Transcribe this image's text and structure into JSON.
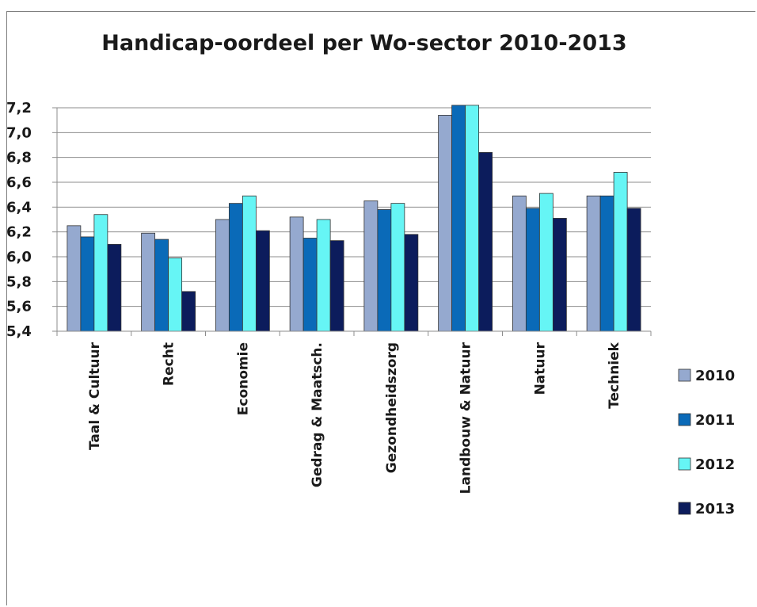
{
  "chart_data": {
    "type": "bar",
    "title": "Handicap-oordeel  per Wo-sector 2010-2013",
    "xlabel": "",
    "ylabel": "",
    "ylim": [
      5.4,
      7.2
    ],
    "yticks": [
      "7,2",
      "7,0",
      "6,8",
      "6,6",
      "6,4",
      "6,2",
      "6,0",
      "5,8",
      "5,6",
      "5,4"
    ],
    "grid": true,
    "legend_position": "right",
    "categories": [
      "Taal & Cultuur",
      "Recht",
      "Economie",
      "Gedrag & Maatsch.",
      "Gezondheidszorg",
      "Landbouw & Natuur",
      "Natuur",
      "Techniek"
    ],
    "series": [
      {
        "name": "2010",
        "color": "#95a9cf",
        "values": [
          6.25,
          6.19,
          6.3,
          6.32,
          6.45,
          7.14,
          6.49,
          6.49
        ]
      },
      {
        "name": "2011",
        "color": "#0a6ab8",
        "values": [
          6.16,
          6.14,
          6.43,
          6.15,
          6.38,
          7.22,
          6.39,
          6.49
        ]
      },
      {
        "name": "2012",
        "color": "#66f5f5",
        "values": [
          6.34,
          5.99,
          6.49,
          6.3,
          6.43,
          7.22,
          6.51,
          6.68
        ]
      },
      {
        "name": "2013",
        "color": "#0c1c5c",
        "values": [
          6.1,
          5.72,
          6.21,
          6.13,
          6.18,
          6.84,
          6.31,
          6.39
        ]
      }
    ]
  }
}
